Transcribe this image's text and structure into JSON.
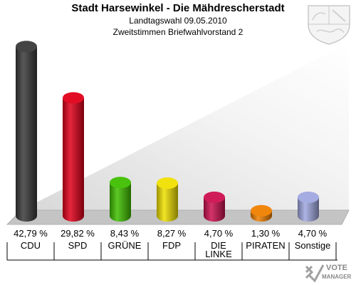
{
  "header": {
    "title": "Stadt Harsewinkel - Die Mähdrescherstadt",
    "subtitle": "Landtagswahl 09.05.2010",
    "subtitle2": "Zweitstimmen Briefwahlvorstand 2"
  },
  "logo": {
    "line1": "VOTE",
    "line2": "MANAGER",
    "icon": "checkmark-x-icon"
  },
  "crest": {
    "icon": "nrw-coat-of-arms-icon"
  },
  "chart_data": {
    "type": "bar",
    "title": "Stadt Harsewinkel - Die Mähdrescherstadt",
    "xlabel": "",
    "ylabel": "",
    "ylim": [
      0,
      45
    ],
    "grid": false,
    "categories": [
      "CDU",
      "SPD",
      "GRÜNE",
      "FDP",
      "DIE LINKE",
      "PIRATEN",
      "Sonstige"
    ],
    "values": [
      42.79,
      29.82,
      8.43,
      8.27,
      4.7,
      1.3,
      4.7
    ],
    "value_labels": [
      "42,79 %",
      "29,82 %",
      "8,43 %",
      "8,27 %",
      "4,70 %",
      "1,30 %",
      "4,70 %"
    ],
    "colors": [
      "#3a3a3a",
      "#e0001a",
      "#3fbf00",
      "#f0e000",
      "#cc1050",
      "#f08000",
      "#a0a8e0"
    ]
  }
}
